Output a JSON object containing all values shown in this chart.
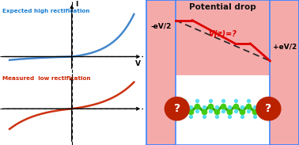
{
  "left_panel_bg": "#ffffff",
  "right_panel_bg": "#f5aaaa",
  "border_color": "#4488ff",
  "title_right": "Potential drop",
  "title_right_color": "#111111",
  "label_expected": "Expected high rectification",
  "label_expected_color": "#1a7fd4",
  "label_measured": "Measured  low rectification",
  "label_measured_color": "#cc2200",
  "curve_high_color": "#4488cc",
  "curve_low_color": "#cc3311",
  "potential_line_color": "#dd0000",
  "dashed_line_color": "#222222",
  "electrode_color": "#f5aaaa",
  "electrode_border": "#4488ff",
  "label_neg": "-eV/2",
  "label_pos": "+eV/2",
  "vz_label": "V(z)=?",
  "vz_color": "#dd0000",
  "question_circle_color": "#bb2200",
  "question_text_color": "#ffffff",
  "white_gap": "#ffffff"
}
